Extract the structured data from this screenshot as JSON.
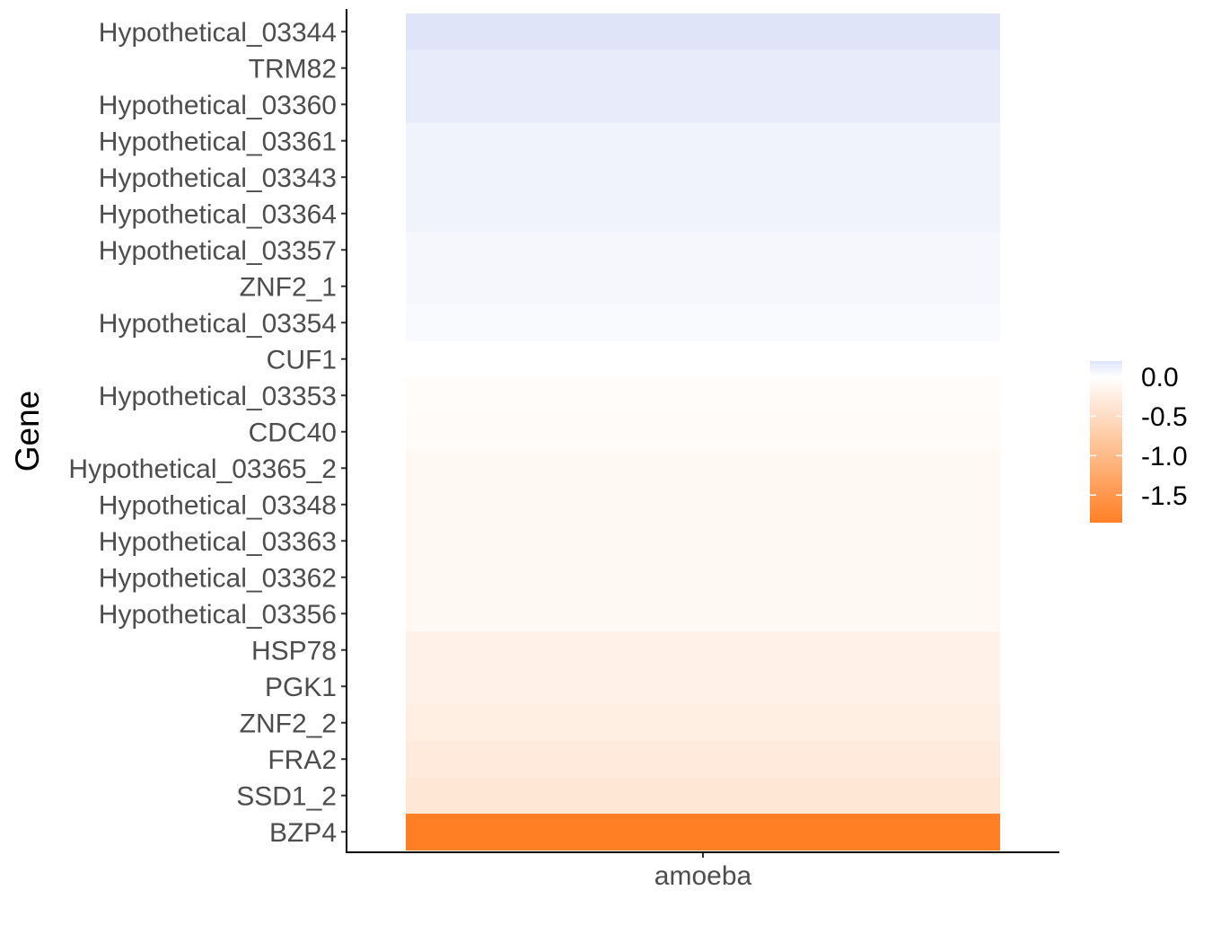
{
  "chart_data": {
    "type": "heatmap",
    "title": "",
    "xlabel": "",
    "ylabel": "Gene",
    "x_categories": [
      "amoeba"
    ],
    "genes": [
      "Hypothetical_03344",
      "TRM82",
      "Hypothetical_03360",
      "Hypothetical_03361",
      "Hypothetical_03343",
      "Hypothetical_03364",
      "Hypothetical_03357",
      "ZNF2_1",
      "Hypothetical_03354",
      "CUF1",
      "Hypothetical_03353",
      "CDC40",
      "Hypothetical_03365_2",
      "Hypothetical_03348",
      "Hypothetical_03363",
      "Hypothetical_03362",
      "Hypothetical_03356",
      "HSP78",
      "PGK1",
      "ZNF2_2",
      "FRA2",
      "SSD1_2",
      "BZP4"
    ],
    "values": [
      0.2,
      0.15,
      0.15,
      0.1,
      0.1,
      0.1,
      0.06,
      0.06,
      0.04,
      null,
      -0.04,
      -0.06,
      -0.1,
      -0.1,
      -0.1,
      -0.1,
      -0.1,
      -0.2,
      -0.2,
      -0.25,
      -0.3,
      -0.35,
      -1.85
    ],
    "color_scale": {
      "low_color": "#ff7f24",
      "mid_color": "#ffffff",
      "high_color": "#e0e4f8",
      "min": -1.85,
      "max": 0.2
    },
    "legend": {
      "position": "right",
      "ticks": [
        0.0,
        -0.5,
        -1.0,
        -1.5
      ],
      "tick_labels": [
        "0.0",
        "-0.5",
        "-1.0",
        "-1.5"
      ]
    },
    "grid": false
  }
}
